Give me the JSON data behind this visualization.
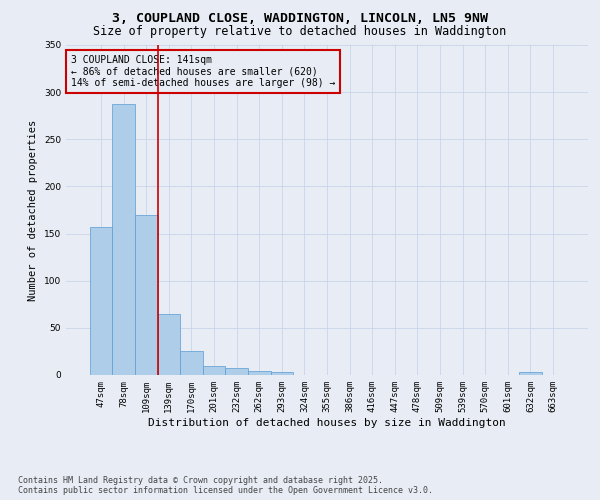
{
  "title_line1": "3, COUPLAND CLOSE, WADDINGTON, LINCOLN, LN5 9NW",
  "title_line2": "Size of property relative to detached houses in Waddington",
  "xlabel": "Distribution of detached houses by size in Waddington",
  "ylabel": "Number of detached properties",
  "categories": [
    "47sqm",
    "78sqm",
    "109sqm",
    "139sqm",
    "170sqm",
    "201sqm",
    "232sqm",
    "262sqm",
    "293sqm",
    "324sqm",
    "355sqm",
    "386sqm",
    "416sqm",
    "447sqm",
    "478sqm",
    "509sqm",
    "539sqm",
    "570sqm",
    "601sqm",
    "632sqm",
    "663sqm"
  ],
  "values": [
    157,
    287,
    170,
    65,
    25,
    10,
    7,
    4,
    3,
    0,
    0,
    0,
    0,
    0,
    0,
    0,
    0,
    0,
    0,
    3,
    0
  ],
  "bar_color": "#aecde8",
  "bar_edge_color": "#5b9bd5",
  "bar_width": 1.0,
  "vline_x": 2.5,
  "vline_color": "#cc0000",
  "ylim": [
    0,
    350
  ],
  "yticks": [
    0,
    50,
    100,
    150,
    200,
    250,
    300,
    350
  ],
  "grid_color": "#c8d4e8",
  "background_color": "#e8edf5",
  "annotation_text": "3 COUPLAND CLOSE: 141sqm\n← 86% of detached houses are smaller (620)\n14% of semi-detached houses are larger (98) →",
  "annotation_box_color": "#cc0000",
  "footer_text": "Contains HM Land Registry data © Crown copyright and database right 2025.\nContains public sector information licensed under the Open Government Licence v3.0.",
  "title_fontsize": 9.5,
  "subtitle_fontsize": 8.5,
  "xlabel_fontsize": 8,
  "ylabel_fontsize": 7.5,
  "tick_fontsize": 6.5,
  "annotation_fontsize": 7,
  "footer_fontsize": 6
}
